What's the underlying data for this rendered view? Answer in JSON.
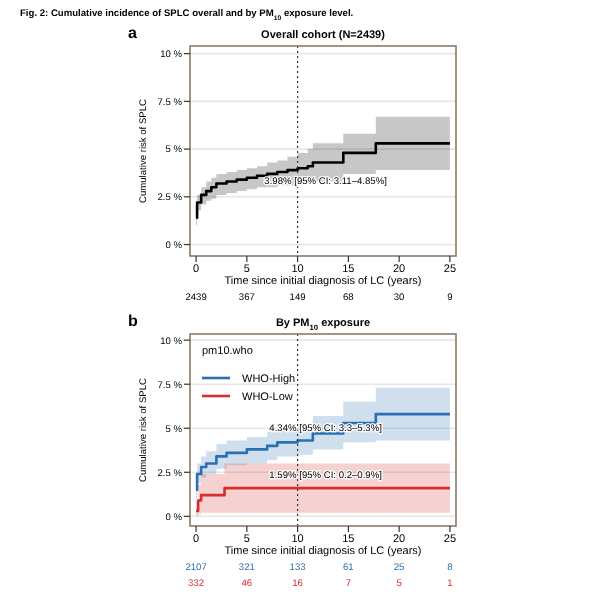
{
  "chart_data": [
    {
      "type": "step",
      "title": "Overall cohort (N=2439)",
      "xlabel": "Time since initial diagnosis of LC (years)",
      "ylabel": "Cumulative risk of SPLC",
      "annotations": [
        "Fig. 2: Cumulative incidence of SPLC overall and by PM$_{10}$ exposure level.",
        "a",
        "3.98% [95% CI: 3.11–4.85%]",
        "2439",
        "367",
        "149",
        "68",
        "30",
        "9"
      ],
      "series": [
        {
          "color": "#000000",
          "x": [
            0,
            0.1,
            0.5,
            1,
            1.5,
            2,
            3,
            4,
            5,
            6,
            7,
            8,
            9,
            10,
            11,
            11.5,
            14.5,
            17.7,
            25
          ],
          "values": [
            1.4,
            2.2,
            2.6,
            2.8,
            3.0,
            3.2,
            3.3,
            3.4,
            3.5,
            3.6,
            3.7,
            3.8,
            3.9,
            4.0,
            4.1,
            4.3,
            4.8,
            5.3,
            5.3
          ],
          "lower": [
            1.0,
            1.8,
            2.1,
            2.3,
            2.4,
            2.6,
            2.7,
            2.8,
            2.9,
            3.0,
            3.0,
            3.1,
            3.1,
            3.2,
            3.2,
            3.3,
            3.7,
            3.9,
            3.9
          ],
          "upper": [
            1.8,
            2.6,
            3.0,
            3.3,
            3.5,
            3.7,
            3.8,
            3.9,
            4.0,
            4.1,
            4.3,
            4.4,
            4.6,
            4.8,
            5.0,
            5.3,
            5.8,
            6.7,
            6.7
          ]
        }
      ],
      "xlim": [
        -0.6,
        25.6
      ],
      "ylim": [
        -0.6,
        10.4
      ],
      "xticks": [
        0,
        5,
        10,
        15,
        20,
        25
      ],
      "yticks": [
        {
          "value": 0,
          "label": "0 %"
        },
        {
          "value": 2.5,
          "label": "2.5 %"
        },
        {
          "value": 5,
          "label": "5 %"
        },
        {
          "value": 7.5,
          "label": "7.5 %"
        },
        {
          "value": 10,
          "label": "10 %"
        }
      ],
      "grid": "y",
      "ref_lines": [
        {
          "axis": "x",
          "value": 10,
          "line_style": "dotted",
          "color": "#333333"
        }
      ]
    },
    {
      "type": "step",
      "title": "By PM$_{10}$ exposure",
      "xlabel": "Time since initial diagnosis of LC (years)",
      "ylabel": "Cumulative risk of SPLC",
      "legend_title": "pm10.who",
      "legend": "top left",
      "annotations": [
        "b",
        "4.34% [95% CI: 3.3–5.3%]",
        "1.59% [95% CI: 0.2–0.9%]",
        "2107",
        "321",
        "133",
        "61",
        "25",
        "8",
        "332",
        "46",
        "16",
        "7",
        "5",
        "1"
      ],
      "series": [
        {
          "name": "WHO-High",
          "color": "#2a6fb0",
          "x": [
            0,
            0.1,
            0.5,
            1,
            2,
            3,
            5,
            7,
            8,
            10,
            11.5,
            14.5,
            17.7,
            25
          ],
          "values": [
            1.5,
            2.4,
            2.8,
            3.0,
            3.4,
            3.6,
            3.8,
            4.0,
            4.2,
            4.3,
            4.7,
            5.3,
            5.8,
            5.8
          ],
          "lower": [
            1.0,
            1.9,
            2.2,
            2.4,
            2.7,
            2.9,
            3.0,
            3.2,
            3.4,
            3.5,
            3.8,
            4.2,
            4.3,
            4.3
          ],
          "upper": [
            2.0,
            3.0,
            3.4,
            3.7,
            4.1,
            4.3,
            4.5,
            4.8,
            5.0,
            5.2,
            5.7,
            6.5,
            7.3,
            7.3
          ]
        },
        {
          "name": "WHO-Low",
          "color": "#d62d2d",
          "x": [
            0,
            0.2,
            0.5,
            2.8,
            25
          ],
          "values": [
            0.3,
            0.9,
            1.2,
            1.6,
            1.6
          ],
          "lower": [
            0.0,
            0.1,
            0.2,
            0.2,
            0.2
          ],
          "upper": [
            0.8,
            1.8,
            2.4,
            3.0,
            3.0
          ]
        }
      ],
      "xlim": [
        -0.6,
        25.6
      ],
      "ylim": [
        -0.55,
        10.35
      ],
      "xticks": [
        0,
        5,
        10,
        15,
        20,
        25
      ],
      "yticks": [
        {
          "value": 0,
          "label": "0 %"
        },
        {
          "value": 2.5,
          "label": "2.5 %"
        },
        {
          "value": 5,
          "label": "5 %"
        },
        {
          "value": 7.5,
          "label": "7.5 %"
        },
        {
          "value": 10,
          "label": "10 %"
        }
      ],
      "grid": "y",
      "ref_lines": [
        {
          "axis": "x",
          "value": 10,
          "line_style": "dotted",
          "color": "#333333"
        }
      ]
    }
  ]
}
